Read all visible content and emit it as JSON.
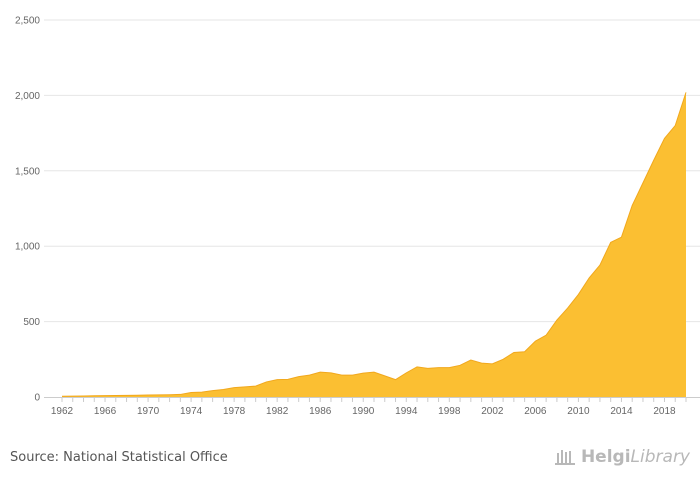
{
  "chart_data": {
    "type": "area",
    "title": "",
    "xlabel": "",
    "ylabel": "",
    "x": [
      1962,
      1963,
      1964,
      1965,
      1966,
      1967,
      1968,
      1969,
      1970,
      1971,
      1972,
      1973,
      1974,
      1975,
      1976,
      1977,
      1978,
      1979,
      1980,
      1981,
      1982,
      1983,
      1984,
      1985,
      1986,
      1987,
      1988,
      1989,
      1990,
      1991,
      1992,
      1993,
      1994,
      1995,
      1996,
      1997,
      1998,
      1999,
      2000,
      2001,
      2002,
      2003,
      2004,
      2005,
      2006,
      2007,
      2008,
      2009,
      2010,
      2011,
      2012,
      2013,
      2014,
      2015,
      2016,
      2017,
      2018,
      2019,
      2020
    ],
    "values": [
      5,
      6,
      7,
      8,
      9,
      10,
      11,
      12,
      13,
      14,
      15,
      17,
      30,
      32,
      42,
      50,
      62,
      67,
      72,
      100,
      115,
      117,
      135,
      145,
      165,
      160,
      145,
      145,
      158,
      165,
      140,
      115,
      160,
      200,
      190,
      195,
      195,
      210,
      245,
      225,
      220,
      250,
      295,
      300,
      370,
      410,
      510,
      590,
      680,
      790,
      875,
      1025,
      1060,
      1270,
      1420,
      1570,
      1715,
      1800,
      2020
    ],
    "xticks": [
      "1962",
      "1966",
      "1970",
      "1974",
      "1978",
      "1982",
      "1986",
      "1990",
      "1994",
      "1998",
      "2002",
      "2006",
      "2010",
      "2014",
      "2018"
    ],
    "yticks": [
      0,
      500,
      1000,
      1500,
      2000,
      2500
    ],
    "ytick_labels": [
      "0",
      "500",
      "1,000",
      "1,500",
      "2,000",
      "2,500"
    ],
    "ylim": [
      0,
      2500
    ],
    "xlim": [
      1962,
      2020
    ],
    "grid": true,
    "legend": "none",
    "colors": {
      "fill": "#fbbf32",
      "stroke": "#f1a81d",
      "grid": "#e6e6e6",
      "axis": "#cccccc"
    }
  },
  "footer": {
    "source": "Source: National Statistical Office",
    "brand_name": "Helgi",
    "brand_suffix": "Library",
    "brand_icon": "helgilibrary-logo-icon"
  }
}
